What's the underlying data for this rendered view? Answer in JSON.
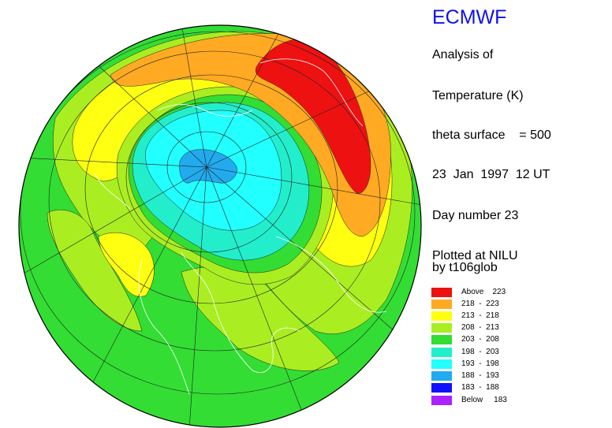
{
  "header": {
    "title": "ECMWF",
    "analysis_line": "Analysis of",
    "parameter": "Temperature (K)",
    "surface_line": "theta surface    = 500",
    "date_line": "23  Jan  1997  12 UT",
    "day_line": "Day number 23",
    "plotted_line": "Plotted at NILU",
    "program_line": "by t106glob"
  },
  "legend": [
    {
      "label": "Above    223",
      "color": "#ee1111"
    },
    {
      "label": "218  -  223",
      "color": "#ffaa22"
    },
    {
      "label": "213  -  218",
      "color": "#ffff11"
    },
    {
      "label": "208  -  213",
      "color": "#aaee22"
    },
    {
      "label": "203  -  208",
      "color": "#33dd33"
    },
    {
      "label": "198  -  203",
      "color": "#22eecc"
    },
    {
      "label": "193  -  198",
      "color": "#22ffff"
    },
    {
      "label": "188  -  193",
      "color": "#22aaee"
    },
    {
      "label": "183  -  188",
      "color": "#1111ff"
    },
    {
      "label": "Below     183",
      "color": "#aa22ff"
    }
  ],
  "map": {
    "projection": "orthographic-north-polar",
    "background_band_color": "#33dd33",
    "gridlines": true,
    "coastlines": true
  }
}
